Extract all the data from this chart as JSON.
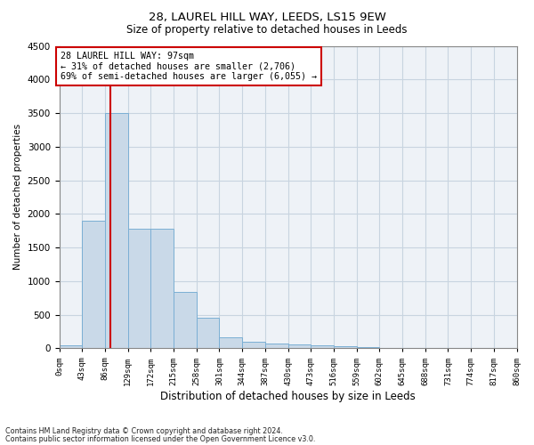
{
  "title1": "28, LAUREL HILL WAY, LEEDS, LS15 9EW",
  "title2": "Size of property relative to detached houses in Leeds",
  "xlabel": "Distribution of detached houses by size in Leeds",
  "ylabel": "Number of detached properties",
  "bar_values": [
    50,
    1900,
    3500,
    1780,
    1780,
    840,
    460,
    160,
    90,
    70,
    55,
    40,
    30,
    20,
    10,
    5,
    5,
    2,
    1,
    1
  ],
  "bin_edges": [
    0,
    43,
    86,
    129,
    172,
    215,
    258,
    301,
    344,
    387,
    430,
    473,
    516,
    559,
    602,
    645,
    688,
    731,
    774,
    817,
    860
  ],
  "tick_labels": [
    "0sqm",
    "43sqm",
    "86sqm",
    "129sqm",
    "172sqm",
    "215sqm",
    "258sqm",
    "301sqm",
    "344sqm",
    "387sqm",
    "430sqm",
    "473sqm",
    "516sqm",
    "559sqm",
    "602sqm",
    "645sqm",
    "688sqm",
    "731sqm",
    "774sqm",
    "817sqm",
    "860sqm"
  ],
  "bar_color": "#c9d9e8",
  "bar_edge_color": "#7bafd4",
  "vline_x": 97,
  "vline_color": "#cc0000",
  "annotation_title": "28 LAUREL HILL WAY: 97sqm",
  "annotation_line1": "← 31% of detached houses are smaller (2,706)",
  "annotation_line2": "69% of semi-detached houses are larger (6,055) →",
  "annotation_box_color": "#cc0000",
  "ylim": [
    0,
    4500
  ],
  "yticks": [
    0,
    500,
    1000,
    1500,
    2000,
    2500,
    3000,
    3500,
    4000,
    4500
  ],
  "footnote1": "Contains HM Land Registry data © Crown copyright and database right 2024.",
  "footnote2": "Contains public sector information licensed under the Open Government Licence v3.0.",
  "bg_color": "#eef2f7",
  "grid_color": "#c8d4e0"
}
